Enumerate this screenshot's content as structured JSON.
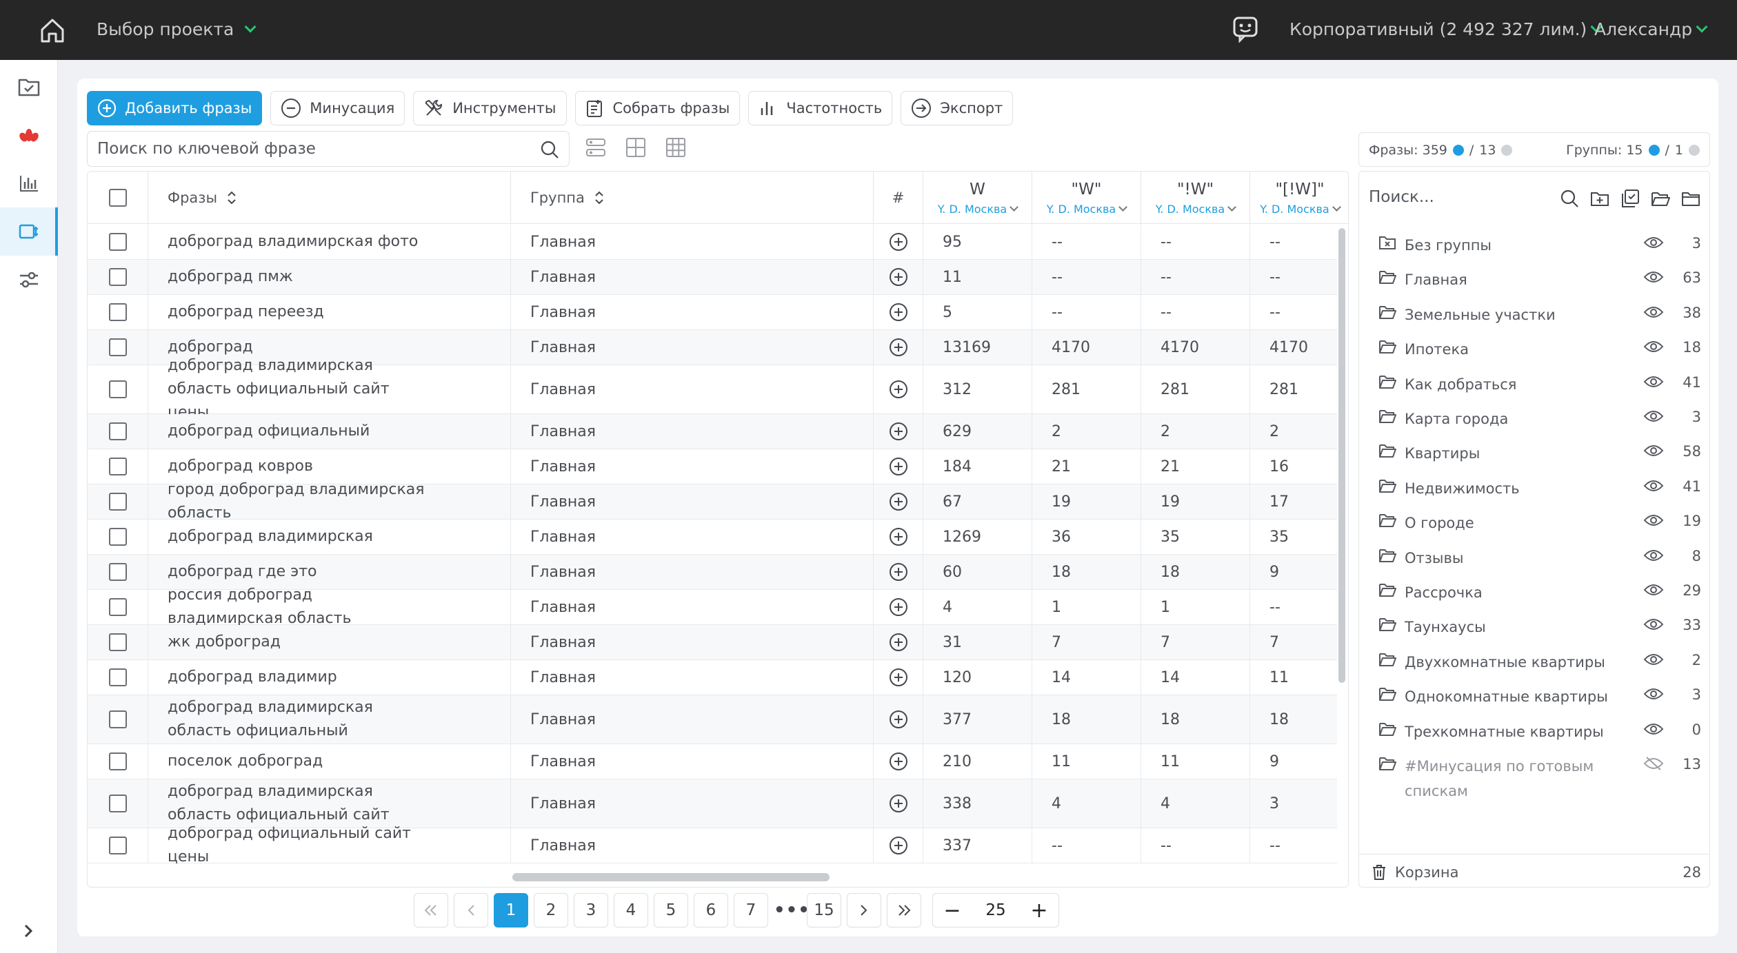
{
  "topbar": {
    "project_label": "Выбор проекта",
    "plan_label": "Корпоративный (2 492 327 лим.)",
    "user_name": "Александр"
  },
  "sidebar": {
    "items": [
      {
        "icon": "folder-check-icon"
      },
      {
        "icon": "lotus-logo-icon"
      },
      {
        "icon": "bar-chart-icon"
      },
      {
        "icon": "phrases-icon",
        "active": true
      },
      {
        "icon": "settings-sliders-icon"
      }
    ]
  },
  "toolbar": {
    "add_label": "Добавить фразы",
    "minus_label": "Минусация",
    "tools_label": "Инструменты",
    "collect_label": "Собрать фразы",
    "freq_label": "Частотность",
    "export_label": "Экспорт"
  },
  "search": {
    "placeholder": "Поиск по ключевой фразе"
  },
  "table": {
    "col_phrases": "Фразы",
    "col_group": "Группа",
    "col_hash": "#",
    "metrics": [
      {
        "name": "W",
        "region": "Y. D. Москва"
      },
      {
        "name": "\"W\"",
        "region": "Y. D. Москва"
      },
      {
        "name": "\"!W\"",
        "region": "Y. D. Москва"
      },
      {
        "name": "\"[!W]\"",
        "region": "Y. D. Москва"
      }
    ],
    "rows": [
      {
        "phrase": "доброград владимирская фото",
        "group": "Главная",
        "w": "95",
        "w2": "--",
        "w3": "--",
        "w4": "--"
      },
      {
        "phrase": "доброград пмж",
        "group": "Главная",
        "w": "11",
        "w2": "--",
        "w3": "--",
        "w4": "--"
      },
      {
        "phrase": "доброград переезд",
        "group": "Главная",
        "w": "5",
        "w2": "--",
        "w3": "--",
        "w4": "--"
      },
      {
        "phrase": "доброград",
        "group": "Главная",
        "w": "13169",
        "w2": "4170",
        "w3": "4170",
        "w4": "4170"
      },
      {
        "phrase": "доброград владимирская область официальный сайт цены",
        "group": "Главная",
        "w": "312",
        "w2": "281",
        "w3": "281",
        "w4": "281"
      },
      {
        "phrase": "доброград официальный",
        "group": "Главная",
        "w": "629",
        "w2": "2",
        "w3": "2",
        "w4": "2"
      },
      {
        "phrase": "доброград ковров",
        "group": "Главная",
        "w": "184",
        "w2": "21",
        "w3": "21",
        "w4": "16"
      },
      {
        "phrase": "город доброград владимирская область",
        "group": "Главная",
        "w": "67",
        "w2": "19",
        "w3": "19",
        "w4": "17"
      },
      {
        "phrase": "доброград владимирская",
        "group": "Главная",
        "w": "1269",
        "w2": "36",
        "w3": "35",
        "w4": "35"
      },
      {
        "phrase": "доброград где это",
        "group": "Главная",
        "w": "60",
        "w2": "18",
        "w3": "18",
        "w4": "9"
      },
      {
        "phrase": "россия доброград владимирская область",
        "group": "Главная",
        "w": "4",
        "w2": "1",
        "w3": "1",
        "w4": "--"
      },
      {
        "phrase": "жк доброград",
        "group": "Главная",
        "w": "31",
        "w2": "7",
        "w3": "7",
        "w4": "7"
      },
      {
        "phrase": "доброград владимир",
        "group": "Главная",
        "w": "120",
        "w2": "14",
        "w3": "14",
        "w4": "11"
      },
      {
        "phrase": "доброград владимирская область официальный",
        "group": "Главная",
        "w": "377",
        "w2": "18",
        "w3": "18",
        "w4": "18"
      },
      {
        "phrase": "поселок доброград",
        "group": "Главная",
        "w": "210",
        "w2": "11",
        "w3": "11",
        "w4": "9"
      },
      {
        "phrase": "доброград владимирская область официальный сайт",
        "group": "Главная",
        "w": "338",
        "w2": "4",
        "w3": "4",
        "w4": "3"
      },
      {
        "phrase": "доброград официальный сайт цены",
        "group": "Главная",
        "w": "337",
        "w2": "--",
        "w3": "--",
        "w4": "--"
      }
    ]
  },
  "pagination": {
    "pages": [
      "1",
      "2",
      "3",
      "4",
      "5",
      "6",
      "7"
    ],
    "dots": "•••",
    "last": "15",
    "current": "1",
    "per_page": "25",
    "minus": "−",
    "plus": "+"
  },
  "stats": {
    "phrases_label": "Фразы: 359",
    "phrases_sep": "/",
    "phrases_other": "13",
    "groups_label": "Группы: 15",
    "groups_sep": "/",
    "groups_other": "1"
  },
  "groups": {
    "search_placeholder": "Поиск...",
    "items": [
      {
        "name": "Без группы",
        "count": "3",
        "visible": true,
        "icon": "folder-x-icon"
      },
      {
        "name": "Главная",
        "count": "63",
        "visible": true
      },
      {
        "name": "Земельные участки",
        "count": "38",
        "visible": true
      },
      {
        "name": "Ипотека",
        "count": "18",
        "visible": true
      },
      {
        "name": "Как добраться",
        "count": "41",
        "visible": true
      },
      {
        "name": "Карта города",
        "count": "3",
        "visible": true
      },
      {
        "name": "Квартиры",
        "count": "58",
        "visible": true
      },
      {
        "name": "Недвижимость",
        "count": "41",
        "visible": true
      },
      {
        "name": "О городе",
        "count": "19",
        "visible": true
      },
      {
        "name": "Отзывы",
        "count": "8",
        "visible": true
      },
      {
        "name": "Рассрочка",
        "count": "29",
        "visible": true
      },
      {
        "name": "Таунхаусы",
        "count": "33",
        "visible": true
      },
      {
        "name": "Двухкомнатные квартиры",
        "count": "2",
        "visible": true
      },
      {
        "name": "Однокомнатные квартиры",
        "count": "3",
        "visible": true
      },
      {
        "name": "Трехкомнатные квартиры",
        "count": "0",
        "visible": true
      },
      {
        "name": "#Минусация по готовым спискам",
        "count": "13",
        "visible": false
      }
    ],
    "trash_label": "Корзина",
    "trash_count": "28"
  },
  "colors": {
    "accent": "#1e9ee0",
    "topbar": "#262626",
    "chevron": "#28c76f"
  }
}
